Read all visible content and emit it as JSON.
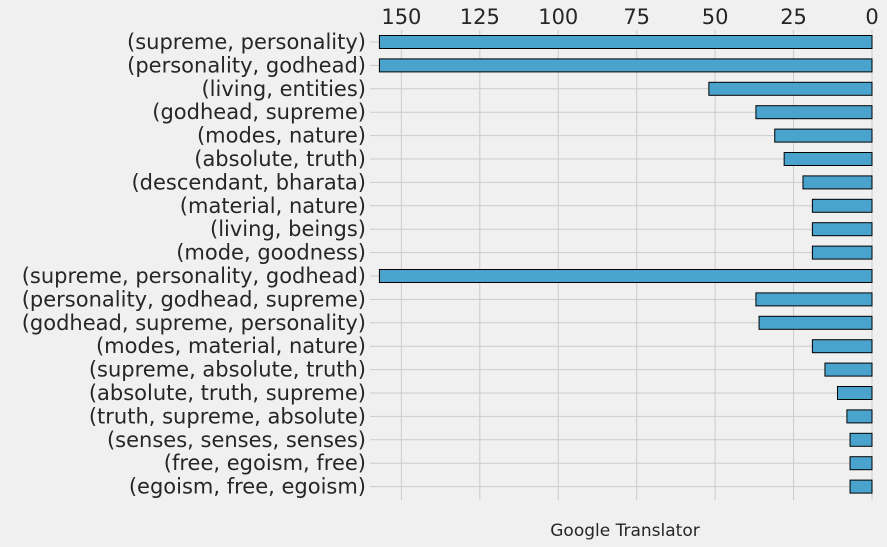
{
  "chart_data": {
    "type": "bar",
    "orientation": "horizontal",
    "x_axis_position": "top",
    "x_inverted": true,
    "grid": true,
    "xlabel": "Google Translator",
    "xlim": [
      160,
      0
    ],
    "xticks": [
      150,
      125,
      100,
      75,
      50,
      25,
      0
    ],
    "bar_color": "#4aa3cc",
    "categories": [
      "(supreme, personality)",
      "(personality, godhead)",
      "(living, entities)",
      "(godhead, supreme)",
      "(modes, nature)",
      "(absolute, truth)",
      "(descendant, bharata)",
      "(material, nature)",
      "(living, beings)",
      "(mode, goodness)",
      "(supreme, personality, godhead)",
      "(personality, godhead, supreme)",
      "(godhead, supreme, personality)",
      "(modes, material, nature)",
      "(supreme, absolute, truth)",
      "(absolute, truth, supreme)",
      "(truth, supreme, absolute)",
      "(senses, senses, senses)",
      "(free, egoism, free)",
      "(egoism, free, egoism)"
    ],
    "values": [
      157,
      157,
      52,
      37,
      31,
      28,
      22,
      19,
      19,
      19,
      157,
      37,
      36,
      19,
      15,
      11,
      8,
      7,
      7,
      7
    ]
  }
}
